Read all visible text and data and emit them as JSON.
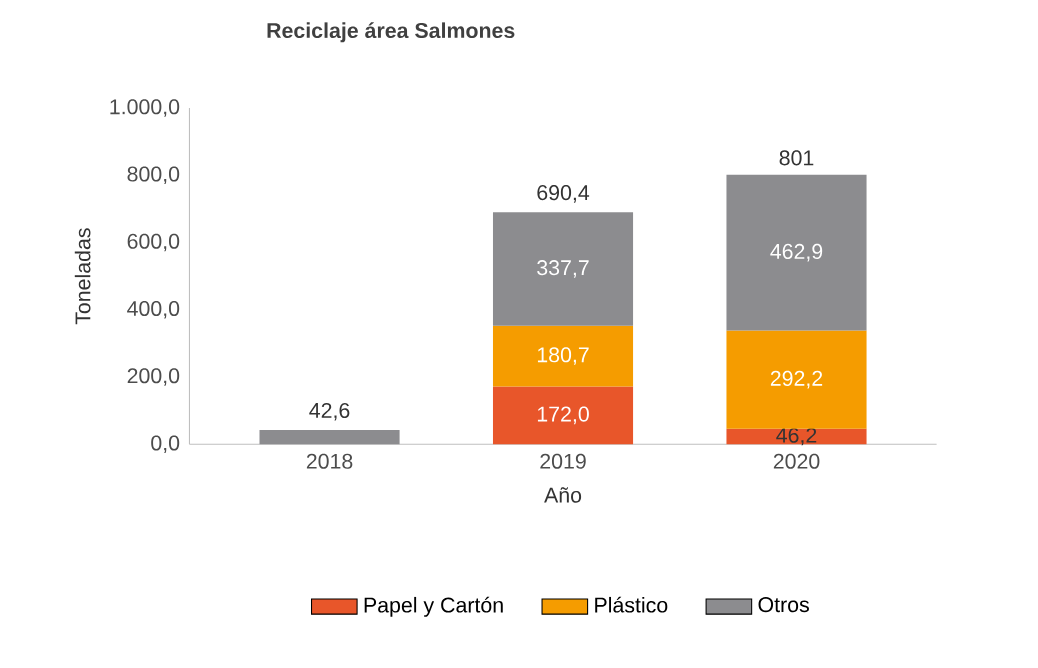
{
  "chart_data": {
    "type": "bar",
    "stacked": true,
    "title": "Reciclaje área Salmones",
    "xlabel": "Año",
    "ylabel": "Toneladas",
    "categories": [
      "2018",
      "2019",
      "2020"
    ],
    "series": [
      {
        "name": "Papel y Cartón",
        "color": "#e8562a",
        "values": [
          null,
          172.0,
          46.2
        ],
        "value_labels": [
          null,
          "172,0",
          "46,2"
        ]
      },
      {
        "name": "Plástico",
        "color": "#f59c00",
        "values": [
          null,
          180.7,
          292.2
        ],
        "value_labels": [
          null,
          "180,7",
          "292,2"
        ]
      },
      {
        "name": "Otros",
        "color": "#8c8c8f",
        "values": [
          42.6,
          337.7,
          462.9
        ],
        "value_labels": [
          null,
          "337,7",
          "462,9"
        ]
      }
    ],
    "totals": [
      "42,6",
      "690,4",
      "801"
    ],
    "ylim": [
      0,
      1000
    ],
    "yticks": [
      {
        "value": 0,
        "label": "0,0"
      },
      {
        "value": 200,
        "label": "200,0"
      },
      {
        "value": 400,
        "label": "400,0"
      },
      {
        "value": 600,
        "label": "600,0"
      },
      {
        "value": 800,
        "label": "800,0"
      },
      {
        "value": 1000,
        "label": "1.000,0"
      }
    ],
    "grid": false,
    "legend": "bottom"
  }
}
